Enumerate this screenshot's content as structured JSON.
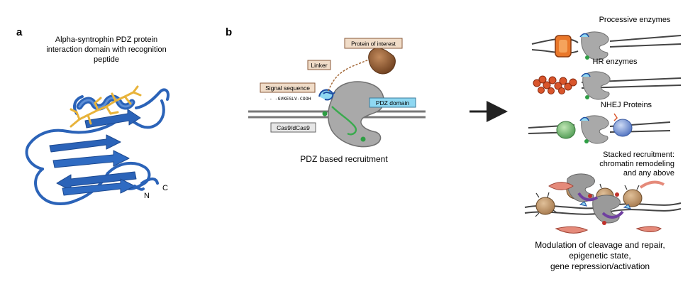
{
  "panel_a": {
    "letter": "a",
    "title_lines": [
      "Alpha-syntrophin PDZ protein",
      "interaction domain with recognition",
      "peptide"
    ],
    "label_n": "N",
    "label_c": "C"
  },
  "panel_b": {
    "letter": "b",
    "protein_of_interest": "Protein of interest",
    "linker": "Linker",
    "signal_sequence": "Signal sequence",
    "peptide_sequence": "- - -GVKESLV-COOH",
    "pdz_domain": "PDZ domain",
    "cas9": "Cas9/dCas9",
    "caption": "PDZ based recruitment"
  },
  "outcomes": {
    "processive": "Processive enzymes",
    "hr": "HR enzymes",
    "nhej": "NHEJ Proteins",
    "stacked_lines": [
      "Stacked recruitment:",
      "chromatin remodeling",
      "and any above"
    ],
    "modulation_lines": [
      "Modulation of cleavage and repair,",
      "epigenetic state,",
      "gene repression/activation"
    ]
  },
  "colors": {
    "ribbon_blue": "#2b63b8",
    "peptide_yellow": "#e8b33a",
    "cas9_gray": "#a9a9a9",
    "pdz_cyan": "#8fd8f2",
    "guide_green": "#3aaa4e",
    "label_beige": "#f0dcc8",
    "protein_brown": "#8a5530",
    "hr_red": "#d9552b",
    "processive_orange": "#e9772a",
    "nhej_green": "#7fbf7a",
    "nhej_blue": "#7b99d6",
    "purple": "#7040a0"
  }
}
